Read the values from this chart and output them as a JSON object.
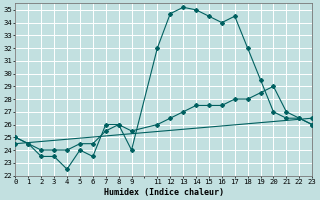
{
  "xlabel": "Humidex (Indice chaleur)",
  "bg_color": "#c2e0e0",
  "grid_color": "#ffffff",
  "line_color": "#006060",
  "xlim": [
    0,
    23
  ],
  "ylim": [
    22,
    35.5
  ],
  "yticks": [
    22,
    23,
    24,
    25,
    26,
    27,
    28,
    29,
    30,
    31,
    32,
    33,
    34,
    35
  ],
  "xtick_labels": [
    "0",
    "1",
    "2",
    "3",
    "4",
    "5",
    "6",
    "7",
    "8",
    "9",
    "",
    "11",
    "12",
    "13",
    "14",
    "15",
    "16",
    "17",
    "18",
    "19",
    "20",
    "21",
    "22",
    "23"
  ],
  "series1": {
    "x": [
      0,
      1,
      2,
      3,
      4,
      5,
      6,
      7,
      8,
      9,
      11,
      12,
      13,
      14,
      15,
      16,
      17,
      18,
      19,
      20,
      21,
      22,
      23
    ],
    "y": [
      25,
      24.5,
      23.5,
      23.5,
      22.5,
      24,
      23.5,
      26,
      26,
      24,
      32,
      34.7,
      35.2,
      35,
      34.5,
      34,
      34.5,
      32,
      29.5,
      27,
      26.5,
      26.5,
      26
    ]
  },
  "series2": {
    "x": [
      0,
      1,
      2,
      3,
      4,
      5,
      6,
      7,
      8,
      9,
      11,
      12,
      13,
      14,
      15,
      16,
      17,
      18,
      19,
      20,
      21,
      22,
      23
    ],
    "y": [
      25,
      24.5,
      24,
      24,
      24,
      24.5,
      24.5,
      25.5,
      26,
      25.5,
      26,
      26.5,
      27,
      27.5,
      27.5,
      27.5,
      28,
      28,
      28.5,
      29,
      27,
      26.5,
      26
    ]
  },
  "series3": {
    "x": [
      0,
      23
    ],
    "y": [
      24.5,
      26.5
    ]
  },
  "marker": "D",
  "markersize": 2.0,
  "linewidth": 0.8,
  "xlabel_fontsize": 6.0,
  "tick_fontsize": 5.2
}
